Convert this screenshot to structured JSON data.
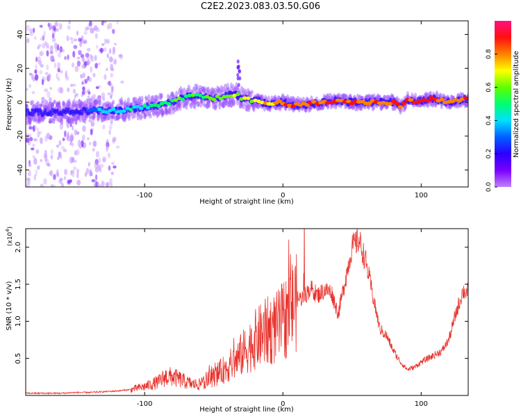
{
  "title": "C2E2.2023.083.03.50.G06",
  "colors": {
    "snr_line": "#e8302a",
    "spectral_scale": [
      "#c080ff",
      "#7a00ff",
      "#2a00ff",
      "#0060ff",
      "#00e0ff",
      "#00ff70",
      "#60ff00",
      "#ffff00",
      "#ff8000",
      "#ff1010",
      "#ff1080"
    ]
  },
  "chart_data": [
    {
      "type": "heatmap",
      "title": "",
      "xlabel": "Height of straight line (km)",
      "ylabel": "Frequency (Hz)",
      "xlim": [
        -186,
        134
      ],
      "ylim": [
        -50,
        48
      ],
      "x_ticks": [
        "-100",
        "0",
        "100"
      ],
      "y_ticks": [
        "-40",
        "-20",
        "0",
        "20",
        "40"
      ],
      "colorbar": {
        "label": "Normalized spectral amplitude",
        "range": [
          0.0,
          1.0
        ],
        "ticks": [
          "0.0",
          "0.2",
          "0.4",
          "0.6",
          "0.8"
        ]
      },
      "ridge": {
        "x": [
          -186,
          -160,
          -140,
          -120,
          -100,
          -90,
          -80,
          -70,
          -60,
          -50,
          -40,
          -34,
          -30,
          -20,
          -10,
          0,
          10,
          20,
          30,
          40,
          50,
          60,
          70,
          80,
          85,
          90,
          100,
          110,
          120,
          134
        ],
        "frequency": [
          -6,
          -6,
          -5,
          -5,
          -3,
          -2,
          0,
          3,
          4,
          2,
          4,
          5,
          2,
          1,
          -1,
          0,
          -2,
          -1,
          0,
          1,
          0,
          0,
          0,
          0,
          -3,
          1,
          1,
          2,
          0,
          2
        ]
      },
      "spectral_amplitude": {
        "x": [
          -186,
          -130,
          -100,
          -70,
          -50,
          -30,
          -10,
          0,
          50,
          134
        ],
        "peak_amplitude": [
          0.35,
          0.4,
          0.5,
          0.6,
          0.65,
          0.7,
          0.85,
          0.95,
          0.95,
          0.95
        ]
      }
    },
    {
      "type": "line",
      "title": "",
      "xlabel": "Height of straight line (km)",
      "ylabel": "SNR (10 * v/v)",
      "y_multiplier": "(x10",
      "y_multiplier_exp": "4",
      "y_multiplier_close": ")",
      "xlim": [
        -186,
        134
      ],
      "ylim": [
        0,
        2.25
      ],
      "x_ticks": [
        "-100",
        "0",
        "100"
      ],
      "y_ticks": [
        "0.5",
        "1.0",
        "1.5",
        "2.0"
      ],
      "series": [
        {
          "x": [
            -186,
            -170,
            -160,
            -150,
            -140,
            -130,
            -120,
            -110,
            -100,
            -95,
            -90,
            -85,
            -80,
            -75,
            -70,
            -65,
            -60,
            -55,
            -50,
            -45,
            -40,
            -35,
            -30,
            -25,
            -20,
            -15,
            -10,
            -5,
            0,
            5,
            10,
            15,
            20,
            25,
            30,
            35,
            40,
            45,
            50,
            55,
            60,
            65,
            70,
            75,
            80,
            85,
            90,
            95,
            100,
            105,
            110,
            115,
            120,
            125,
            130,
            134
          ],
          "values": [
            0.03,
            0.03,
            0.03,
            0.04,
            0.04,
            0.05,
            0.06,
            0.08,
            0.12,
            0.15,
            0.18,
            0.25,
            0.25,
            0.22,
            0.18,
            0.15,
            0.15,
            0.2,
            0.25,
            0.32,
            0.38,
            0.45,
            0.55,
            0.65,
            0.75,
            0.82,
            0.88,
            0.9,
            1.0,
            1.15,
            1.3,
            1.32,
            1.45,
            1.35,
            1.42,
            1.4,
            1.1,
            1.55,
            2.0,
            2.1,
            1.8,
            1.35,
            0.9,
            0.8,
            0.6,
            0.45,
            0.35,
            0.38,
            0.45,
            0.5,
            0.55,
            0.6,
            0.75,
            1.1,
            1.4,
            1.4
          ]
        }
      ]
    }
  ]
}
